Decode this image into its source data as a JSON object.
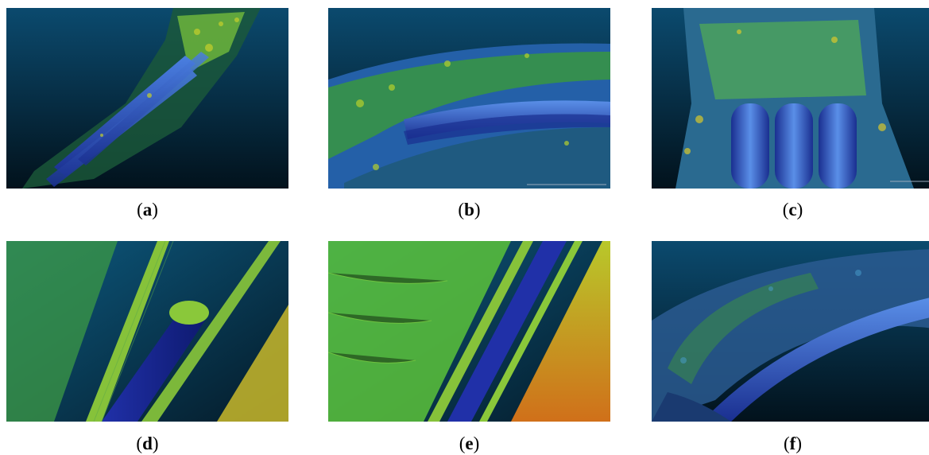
{
  "figure": {
    "panels": [
      {
        "id": "a",
        "label": "a"
      },
      {
        "id": "b",
        "label": "b"
      },
      {
        "id": "c",
        "label": "c"
      },
      {
        "id": "d",
        "label": "d"
      },
      {
        "id": "e",
        "label": "e"
      },
      {
        "id": "f",
        "label": "f"
      }
    ],
    "colors": {
      "bg_top": "#0b4a6e",
      "bg_bottom": "#02121c",
      "pipe_blue": "#1f3fb8",
      "seabed_green": "#3fbf2f",
      "seabed_yellow": "#c9c22a",
      "seabed_orange": "#d87a1a"
    }
  }
}
